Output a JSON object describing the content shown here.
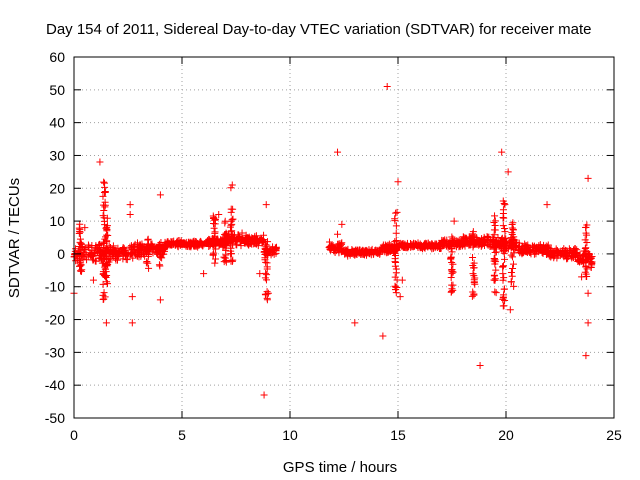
{
  "chart_data": {
    "type": "scatter",
    "title": "Day 154 of 2011, Sidereal Day-to-day VTEC variation (SDTVAR) for receiver mate",
    "xlabel": "GPS time / hours",
    "ylabel": "SDTVAR / TECUs",
    "xlim": [
      0,
      25
    ],
    "ylim": [
      -50,
      60
    ],
    "xticks": [
      0,
      5,
      10,
      15,
      20,
      25
    ],
    "yticks": [
      -50,
      -40,
      -30,
      -20,
      -10,
      0,
      10,
      20,
      30,
      40,
      50,
      60
    ],
    "grid": true,
    "marker": "+",
    "color": "#ff0000",
    "bands": [
      {
        "x": [
          0.0,
          0.2
        ],
        "center": -1.0,
        "halfwidth": 3.0
      },
      {
        "x": [
          0.2,
          1.2
        ],
        "center": 0.5,
        "halfwidth": 3.5
      },
      {
        "x": [
          1.2,
          1.8
        ],
        "center": 0.0,
        "halfwidth": 3.5
      },
      {
        "x": [
          1.8,
          2.6
        ],
        "center": 0.0,
        "halfwidth": 2.5
      },
      {
        "x": [
          2.6,
          3.4
        ],
        "center": 1.0,
        "halfwidth": 2.5
      },
      {
        "x": [
          3.4,
          4.2
        ],
        "center": 1.5,
        "halfwidth": 2.0
      },
      {
        "x": [
          4.2,
          5.0
        ],
        "center": 3.0,
        "halfwidth": 1.2
      },
      {
        "x": [
          5.0,
          6.0
        ],
        "center": 3.0,
        "halfwidth": 1.0
      },
      {
        "x": [
          6.0,
          7.0
        ],
        "center": 3.5,
        "halfwidth": 1.5
      },
      {
        "x": [
          7.0,
          8.0
        ],
        "center": 4.5,
        "halfwidth": 2.0
      },
      {
        "x": [
          8.0,
          8.8
        ],
        "center": 4.0,
        "halfwidth": 2.0
      },
      {
        "x": [
          8.8,
          9.4
        ],
        "center": 1.0,
        "halfwidth": 1.5
      },
      {
        "x": [
          11.8,
          12.4
        ],
        "center": 2.0,
        "halfwidth": 2.0
      },
      {
        "x": [
          12.4,
          13.2
        ],
        "center": 0.5,
        "halfwidth": 1.2
      },
      {
        "x": [
          13.2,
          14.2
        ],
        "center": 0.5,
        "halfwidth": 1.0
      },
      {
        "x": [
          14.2,
          15.0
        ],
        "center": 1.5,
        "halfwidth": 1.5
      },
      {
        "x": [
          15.0,
          17.0
        ],
        "center": 2.5,
        "halfwidth": 1.0
      },
      {
        "x": [
          17.0,
          18.0
        ],
        "center": 3.0,
        "halfwidth": 1.5
      },
      {
        "x": [
          18.0,
          19.5
        ],
        "center": 3.5,
        "halfwidth": 2.0
      },
      {
        "x": [
          19.5,
          20.5
        ],
        "center": 3.0,
        "halfwidth": 2.5
      },
      {
        "x": [
          20.5,
          22.0
        ],
        "center": 1.5,
        "halfwidth": 2.0
      },
      {
        "x": [
          22.0,
          23.3
        ],
        "center": 0.0,
        "halfwidth": 2.0
      },
      {
        "x": [
          23.3,
          24.0
        ],
        "center": -1.5,
        "halfwidth": 3.0
      }
    ],
    "spikes": [
      {
        "x": 0.3,
        "ymin": -7,
        "ymax": 10
      },
      {
        "x": 1.4,
        "ymin": -14,
        "ymax": 22
      },
      {
        "x": 1.5,
        "ymin": -10,
        "ymax": 12
      },
      {
        "x": 3.4,
        "ymin": -5,
        "ymax": 5
      },
      {
        "x": 4.0,
        "ymin": -4,
        "ymax": 5
      },
      {
        "x": 6.5,
        "ymin": -3,
        "ymax": 12
      },
      {
        "x": 7.3,
        "ymin": -3,
        "ymax": 21
      },
      {
        "x": 7.0,
        "ymin": -4,
        "ymax": 10
      },
      {
        "x": 8.9,
        "ymin": -15,
        "ymax": 5
      },
      {
        "x": 14.9,
        "ymin": -12,
        "ymax": 13
      },
      {
        "x": 17.5,
        "ymin": -12,
        "ymax": 9
      },
      {
        "x": 18.5,
        "ymin": -13,
        "ymax": 8
      },
      {
        "x": 19.5,
        "ymin": -14,
        "ymax": 12
      },
      {
        "x": 19.9,
        "ymin": -17,
        "ymax": 17
      },
      {
        "x": 20.3,
        "ymin": -10,
        "ymax": 11
      },
      {
        "x": 23.7,
        "ymin": -8,
        "ymax": 9
      }
    ],
    "outliers": [
      [
        0.0,
        -12
      ],
      [
        0.5,
        8
      ],
      [
        1.2,
        28
      ],
      [
        1.45,
        19
      ],
      [
        1.5,
        -21
      ],
      [
        0.9,
        -8
      ],
      [
        2.6,
        15
      ],
      [
        2.6,
        12
      ],
      [
        2.7,
        -13
      ],
      [
        2.7,
        -21
      ],
      [
        4.0,
        18
      ],
      [
        4.0,
        -14
      ],
      [
        6.0,
        -6
      ],
      [
        6.7,
        12
      ],
      [
        8.6,
        -6
      ],
      [
        8.8,
        -43
      ],
      [
        8.9,
        15
      ],
      [
        9.0,
        -12
      ],
      [
        12.2,
        31
      ],
      [
        12.2,
        6
      ],
      [
        12.4,
        9
      ],
      [
        13.0,
        -21
      ],
      [
        14.3,
        -25
      ],
      [
        14.5,
        51
      ],
      [
        14.6,
        3
      ],
      [
        15.0,
        22
      ],
      [
        15.2,
        -8
      ],
      [
        15.1,
        -13
      ],
      [
        17.6,
        10
      ],
      [
        18.8,
        -34
      ],
      [
        19.8,
        31
      ],
      [
        20.1,
        25
      ],
      [
        20.2,
        -17
      ],
      [
        21.9,
        15
      ],
      [
        23.5,
        -7
      ],
      [
        23.7,
        -31
      ],
      [
        23.8,
        -21
      ],
      [
        23.8,
        -12
      ],
      [
        23.8,
        23
      ]
    ]
  }
}
